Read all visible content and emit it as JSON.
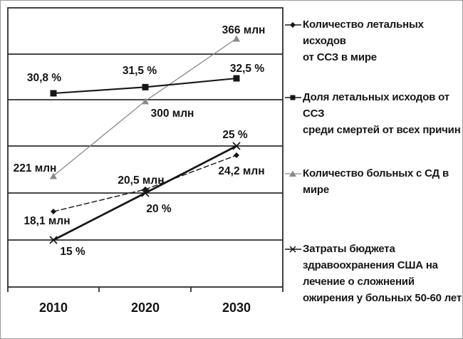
{
  "chart_data": {
    "type": "line",
    "title": "",
    "xlabel": "",
    "ylabel": "",
    "grid": "horizontal-bands",
    "legend_position": "right",
    "categories": [
      "2010",
      "2020",
      "2030"
    ],
    "series": [
      {
        "name": "Количество летальных исходов от ССЗ в мире",
        "marker": "diamond",
        "color": "#161616",
        "unit": "млн",
        "values": [
          18.1,
          20.5,
          24.2
        ],
        "point_labels": [
          "18,1 млн",
          "20,5 млн",
          "24,2 млн"
        ]
      },
      {
        "name": "Доля летальных исходов от ССЗ среди смертей от всех причин",
        "marker": "square",
        "color": "#161616",
        "unit": "%",
        "values": [
          30.8,
          31.5,
          32.5
        ],
        "point_labels": [
          "30,8 %",
          "31,5 %",
          "32,5 %"
        ]
      },
      {
        "name": "Количество больных с СД в мире",
        "marker": "triangle",
        "color": "#8a8a8a",
        "unit": "млн",
        "values": [
          221,
          300,
          366
        ],
        "point_labels": [
          "221 млн",
          "300 млн",
          "366 млн"
        ]
      },
      {
        "name": "Затраты бюджета здравоохранения США на лечение о сложнений ожирения у больных 50-60 лет",
        "marker": "x-cross",
        "color": "#161616",
        "unit": "%",
        "values": [
          15,
          20,
          25
        ],
        "point_labels": [
          "15 %",
          "20 %",
          "25 %"
        ]
      }
    ],
    "legend": [
      {
        "marker": "diamond",
        "lines": [
          "Количество летальных исходов",
          "от ССЗ в мире"
        ]
      },
      {
        "marker": "square",
        "lines": [
          "Доля летальных исходов от ССЗ",
          "среди смертей от всех причин"
        ]
      },
      {
        "marker": "triangle",
        "lines": [
          "Количество больных с СД в",
          "мире"
        ]
      },
      {
        "marker": "x-cross",
        "lines": [
          "Затраты бюджета",
          "здравоохранения США на",
          "лечение о сложнений",
          "ожирения у больных 50-60 лет"
        ]
      }
    ]
  }
}
